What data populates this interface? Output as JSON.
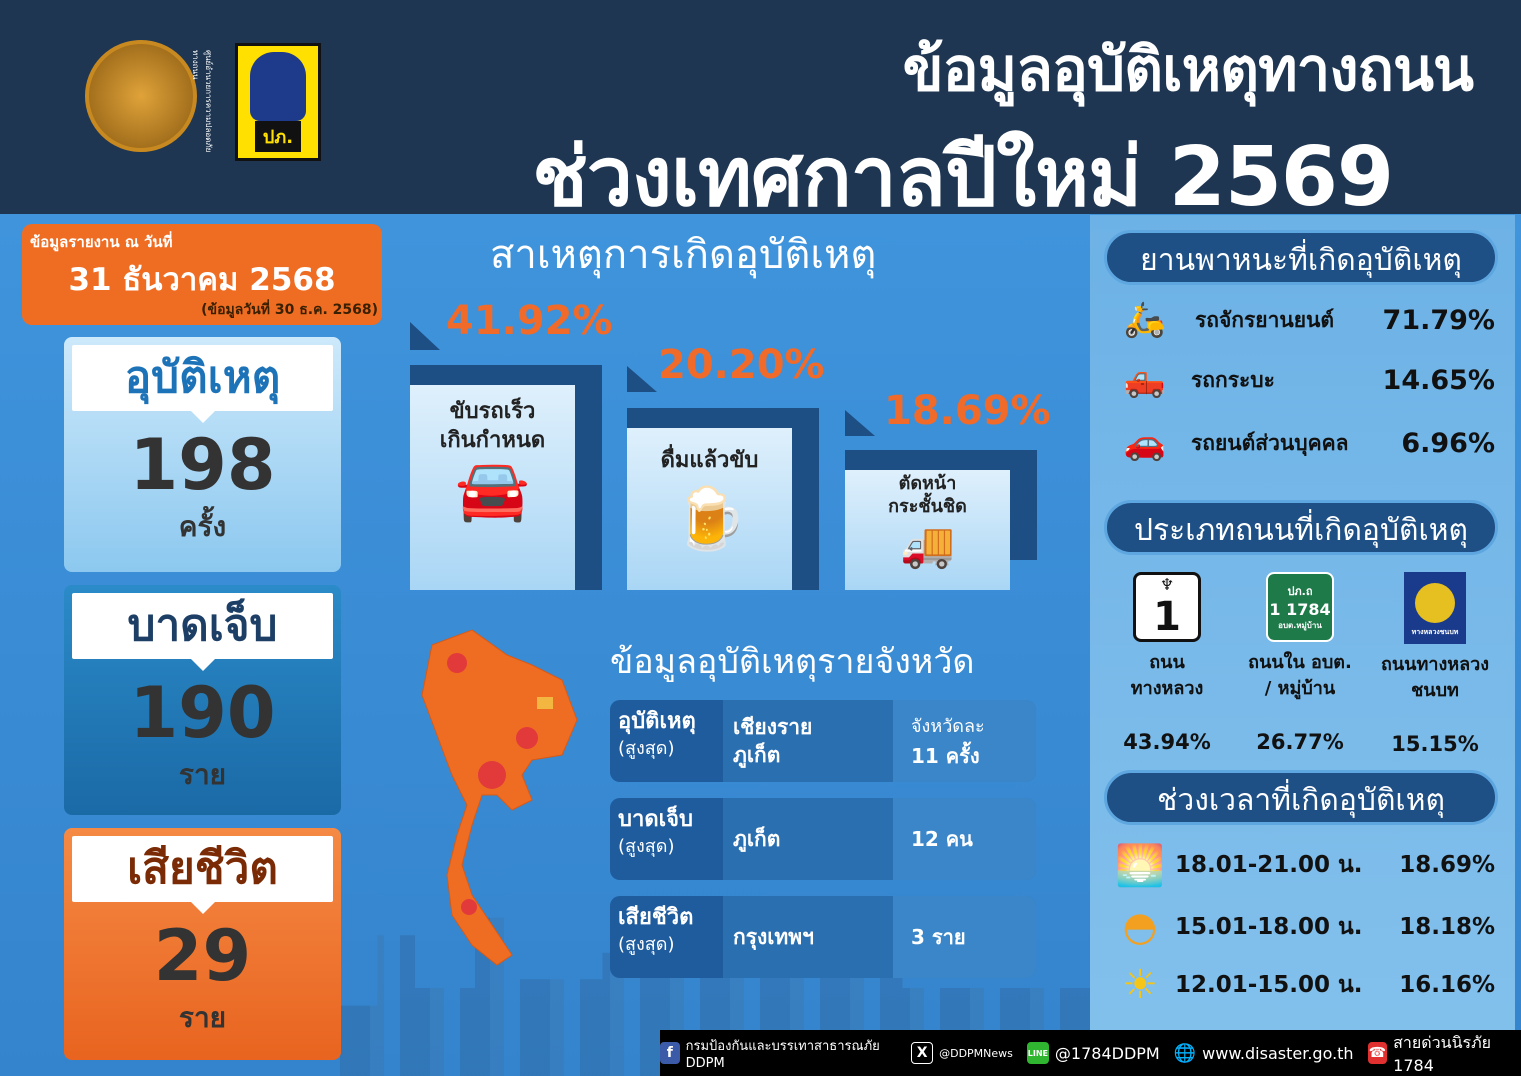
{
  "header": {
    "title_line1": "ข้อมูลอุบัติเหตุทางถนน",
    "title_line2": "ช่วงเทศกาลปีใหม่  2569",
    "seal_text": "ศูนย์อำนวยการความปลอดภัยทางถนน",
    "dpm_logo_text": "ปภ."
  },
  "report": {
    "label": "ข้อมูลรายงาน ณ วันที่",
    "date": "31 ธันวาคม 2568",
    "sub": "(ข้อมูลวันที่ 30 ธ.ค. 2568)"
  },
  "stats": [
    {
      "label": "อุบัติเหตุ",
      "value": "198",
      "unit": "ครั้ง"
    },
    {
      "label": "บาดเจ็บ",
      "value": "190",
      "unit": "ราย"
    },
    {
      "label": "เสียชีวิต",
      "value": "29",
      "unit": "ราย"
    }
  ],
  "causes": {
    "title": "สาเหตุการเกิดอุบัติเหตุ",
    "items": [
      {
        "pct": "41.92%",
        "label_1": "ขับรถเร็ว",
        "label_2": "เกินกำหนด",
        "icon": "speeding-cars-icon"
      },
      {
        "pct": "20.20%",
        "label_1": "ดื่มแล้วขับ",
        "label_2": "",
        "icon": "beer-mugs-icon"
      },
      {
        "pct": "18.69%",
        "label_1": "ตัดหน้า",
        "label_2": "กระชั้นชิด",
        "icon": "cut-off-vehicles-icon"
      }
    ]
  },
  "provinces": {
    "title": "ข้อมูลอุบัติเหตุรายจังหวัด",
    "rows": [
      {
        "key": "อุบัติเหตุ",
        "key_sub": "(สูงสุด)",
        "province": "เชียงราย",
        "province_2": "ภูเก็ต",
        "value_1": "จังหวัดละ",
        "value_2": "11 ครั้ง"
      },
      {
        "key": "บาดเจ็บ",
        "key_sub": "(สูงสุด)",
        "province": "ภูเก็ต",
        "province_2": "",
        "value_1": "",
        "value_2": "12 คน"
      },
      {
        "key": "เสียชีวิต",
        "key_sub": "(สูงสุด)",
        "province": "กรุงเทพฯ",
        "province_2": "",
        "value_1": "",
        "value_2": "3 ราย"
      }
    ]
  },
  "vehicles": {
    "title": "ยานพาหนะที่เกิดอุบัติเหตุ",
    "items": [
      {
        "name": "รถจักรยานยนต์",
        "pct": "71.79%",
        "icon": "motorcycle-icon"
      },
      {
        "name": "รถกระบะ",
        "pct": "14.65%",
        "icon": "pickup-truck-icon"
      },
      {
        "name": "รถยนต์ส่วนบุคคล",
        "pct": "6.96%",
        "icon": "car-icon"
      }
    ]
  },
  "roads": {
    "title": "ประเภทถนนที่เกิดอุบัติเหตุ",
    "items": [
      {
        "name_1": "ถนน",
        "name_2": "ทางหลวง",
        "pct": "43.94%",
        "sign_text": "1"
      },
      {
        "name_1": "ถนนใน อบต.",
        "name_2": "/ หมู่บ้าน",
        "pct": "26.77%",
        "sign_top": "ปภ.ถ",
        "sign_text": "1 1784",
        "sign_bottom": "อบต.หมู่บ้าน"
      },
      {
        "name_1": "ถนนทางหลวง",
        "name_2": "ชนบท",
        "pct": "15.15%",
        "sign_text": "ทางหลวงชนบท"
      }
    ]
  },
  "times": {
    "title": "ช่วงเวลาที่เกิดอุบัติเหตุ",
    "items": [
      {
        "range": "18.01-21.00 น.",
        "pct": "18.69%",
        "icon": "sunset-icon"
      },
      {
        "range": "15.01-18.00 น.",
        "pct": "18.18%",
        "icon": "afternoon-sun-icon"
      },
      {
        "range": "12.01-15.00 น.",
        "pct": "16.16%",
        "icon": "sun-icon"
      }
    ]
  },
  "footer": {
    "facebook": "กรมป้องกันและบรรเทาสาธารณภัย DDPM",
    "x": "@DDPMNews",
    "line": "@1784DDPM",
    "web": "www.disaster.go.th",
    "hotline": "สายด่วนนิรภัย 1784"
  },
  "colors": {
    "header": "#1e3652",
    "orange": "#ef6d23",
    "blue": "#3a8ed6",
    "navy": "#1e4f85"
  }
}
